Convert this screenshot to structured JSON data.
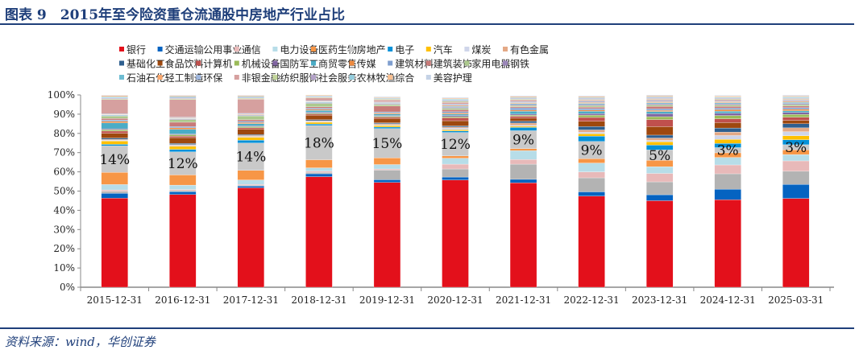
{
  "header": {
    "title": "图表 9　2015年至今险资重仓流通股中房地产行业占比"
  },
  "footer": {
    "source": "资料来源：wind，华创证券"
  },
  "chart_data": {
    "type": "bar",
    "stacked": true,
    "title": "",
    "xlabel": "",
    "ylabel": "",
    "ylim": [
      0,
      100
    ],
    "y_ticks": [
      "0%",
      "10%",
      "20%",
      "30%",
      "40%",
      "50%",
      "60%",
      "70%",
      "80%",
      "90%",
      "100%"
    ],
    "legend_position": "top",
    "grid": false,
    "categories": [
      "2015-12-31",
      "2016-12-31",
      "2017-12-31",
      "2018-12-31",
      "2019-12-31",
      "2020-12-31",
      "2021-12-31",
      "2022-12-31",
      "2023-12-31",
      "2024-12-31",
      "2025-03-31"
    ],
    "data_labels": {
      "series": "房地产",
      "values": [
        "14%",
        "12%",
        "14%",
        "18%",
        "15%",
        "12%",
        "9%",
        "9%",
        "5%",
        "3%",
        "3%"
      ]
    },
    "series": [
      {
        "name": "银行",
        "color": "#e3101b",
        "values": [
          46.3,
          48.2,
          51.7,
          57.5,
          54.5,
          55.8,
          54.3,
          47.4,
          45.0,
          45.5,
          46.2
        ]
      },
      {
        "name": "交通运输",
        "color": "#0563c1",
        "values": [
          2.5,
          1.5,
          0.9,
          1.5,
          1.4,
          1.5,
          1.8,
          2.2,
          3.1,
          5.5,
          7.3
        ]
      },
      {
        "name": "公用事业",
        "color": "#b3b3b3",
        "values": [
          1.0,
          0.5,
          0.4,
          0.7,
          5.0,
          4.2,
          7.9,
          7.3,
          6.7,
          8.0,
          6.8
        ]
      },
      {
        "name": "通信",
        "color": "#e8b9b9",
        "values": [
          0.8,
          0.6,
          0.5,
          0.6,
          0.6,
          2.5,
          2.4,
          3.1,
          4.4,
          4.6,
          5.4
        ]
      },
      {
        "name": "电力设备",
        "color": "#b7dde8",
        "values": [
          2.8,
          2.3,
          2.3,
          1.8,
          2.3,
          3.1,
          4.6,
          4.6,
          3.5,
          3.9,
          3.3
        ]
      },
      {
        "name": "医药生物",
        "color": "#f79646",
        "values": [
          6.3,
          5.3,
          5.0,
          4.2,
          3.5,
          1.2,
          1.1,
          2.2,
          3.3,
          2.4,
          2.4
        ]
      },
      {
        "name": "房地产",
        "color": "#c9c9c9",
        "values": [
          13.8,
          12.0,
          14.2,
          17.8,
          15.2,
          12.2,
          9.3,
          9.0,
          5.4,
          2.7,
          2.7
        ]
      },
      {
        "name": "电子",
        "color": "#0591d8",
        "values": [
          0.8,
          1.3,
          1.5,
          0.8,
          0.8,
          0.8,
          1.7,
          2.8,
          2.5,
          2.2,
          2.6
        ]
      },
      {
        "name": "汽车",
        "color": "#ffc000",
        "values": [
          1.7,
          1.6,
          1.5,
          0.9,
          0.8,
          0.6,
          0.6,
          1.2,
          1.7,
          2.1,
          2.1
        ]
      },
      {
        "name": "煤炭",
        "color": "#cfd5ea",
        "values": [
          0.5,
          0.5,
          0.4,
          0.4,
          0.4,
          0.8,
          0.5,
          0.8,
          0.8,
          2.0,
          2.1
        ]
      },
      {
        "name": "有色金属",
        "color": "#e4a986",
        "values": [
          0.4,
          0.4,
          0.5,
          0.4,
          0.5,
          0.6,
          1.2,
          1.2,
          1.2,
          1.8,
          2.0
        ]
      },
      {
        "name": "基础化工",
        "color": "#2e5f8f",
        "values": [
          0.7,
          0.6,
          0.5,
          0.5,
          0.5,
          0.6,
          1.0,
          1.8,
          1.5,
          2.1,
          2.1
        ]
      },
      {
        "name": "食品饮料",
        "color": "#9e480e",
        "values": [
          2.5,
          3.0,
          2.8,
          2.3,
          2.2,
          2.7,
          1.5,
          2.7,
          4.4,
          2.8,
          1.8
        ]
      },
      {
        "name": "计算机",
        "color": "#c0504d",
        "values": [
          1.1,
          0.8,
          0.7,
          0.6,
          0.7,
          1.5,
          1.0,
          2.0,
          3.7,
          2.0,
          1.6
        ]
      },
      {
        "name": "机械设备",
        "color": "#9bbb59",
        "values": [
          0.7,
          0.7,
          0.6,
          0.5,
          0.5,
          0.6,
          0.6,
          1.2,
          1.5,
          1.7,
          1.5
        ]
      },
      {
        "name": "国防军工",
        "color": "#8064a2",
        "values": [
          0.5,
          0.4,
          0.4,
          0.5,
          0.4,
          0.6,
          0.5,
          0.8,
          1.5,
          1.2,
          1.0
        ]
      },
      {
        "name": "商贸零售",
        "color": "#4bacc6",
        "values": [
          3.1,
          2.4,
          1.2,
          1.0,
          0.8,
          0.7,
          1.5,
          1.2,
          1.2,
          1.0,
          0.9
        ]
      },
      {
        "name": "传媒",
        "color": "#ed8a3f",
        "values": [
          0.8,
          0.8,
          0.6,
          0.5,
          0.5,
          0.6,
          0.6,
          0.6,
          0.6,
          0.9,
          0.8
        ]
      },
      {
        "name": "建筑材料",
        "color": "#7f9fcf",
        "values": [
          0.7,
          0.7,
          0.6,
          0.6,
          0.6,
          0.7,
          1.2,
          0.8,
          0.8,
          0.8,
          0.8
        ]
      },
      {
        "name": "建筑装饰",
        "color": "#c87a78",
        "values": [
          0.8,
          2.2,
          0.8,
          0.7,
          3.0,
          1.0,
          0.6,
          0.8,
          1.2,
          0.8,
          0.8
        ]
      },
      {
        "name": "家用电器",
        "color": "#acc98d",
        "values": [
          1.2,
          1.4,
          2.0,
          1.8,
          0.8,
          0.8,
          0.6,
          0.8,
          0.8,
          0.8,
          0.8
        ]
      },
      {
        "name": "钢铁",
        "color": "#9a86b8",
        "values": [
          0.3,
          0.3,
          0.3,
          0.4,
          0.4,
          0.5,
          0.5,
          0.5,
          0.6,
          0.6,
          0.6
        ]
      },
      {
        "name": "石油石化",
        "color": "#6dbcd2",
        "values": [
          0.3,
          0.3,
          0.3,
          0.3,
          0.3,
          0.5,
          0.5,
          0.6,
          0.6,
          0.6,
          0.6
        ]
      },
      {
        "name": "轻工制造",
        "color": "#f9a86f",
        "values": [
          0.3,
          0.3,
          0.3,
          0.3,
          0.3,
          0.5,
          0.5,
          0.5,
          0.5,
          0.5,
          0.5
        ]
      },
      {
        "name": "环保",
        "color": "#9fb7de",
        "values": [
          0.3,
          0.4,
          0.4,
          0.4,
          0.4,
          0.6,
          0.6,
          0.6,
          0.6,
          0.5,
          0.5
        ]
      },
      {
        "name": "非银金融",
        "color": "#d6a09f",
        "values": [
          7.4,
          9.1,
          7.4,
          1.5,
          1.0,
          1.0,
          0.8,
          0.6,
          0.6,
          0.6,
          0.5
        ]
      },
      {
        "name": "纺织服饰",
        "color": "#c3d69b",
        "values": [
          0.4,
          0.5,
          0.5,
          0.4,
          0.4,
          0.5,
          0.4,
          0.4,
          0.4,
          0.4,
          0.4
        ]
      },
      {
        "name": "社会服务",
        "color": "#b3a2c7",
        "values": [
          0.5,
          0.5,
          0.4,
          0.3,
          0.3,
          0.5,
          0.4,
          0.5,
          0.5,
          0.4,
          0.4
        ]
      },
      {
        "name": "农林牧渔",
        "color": "#93cddd",
        "values": [
          0.6,
          0.6,
          0.5,
          0.4,
          0.4,
          0.6,
          0.5,
          0.5,
          0.5,
          0.5,
          0.5
        ]
      },
      {
        "name": "综合",
        "color": "#fabf8f",
        "values": [
          0.6,
          0.5,
          0.5,
          0.4,
          0.4,
          0.5,
          0.5,
          0.5,
          0.5,
          0.5,
          0.5
        ]
      },
      {
        "name": "美容护理",
        "color": "#c5d2e6",
        "values": [
          0.3,
          0.3,
          0.3,
          0.3,
          0.3,
          0.4,
          0.4,
          0.4,
          0.4,
          0.4,
          0.4
        ]
      }
    ]
  }
}
